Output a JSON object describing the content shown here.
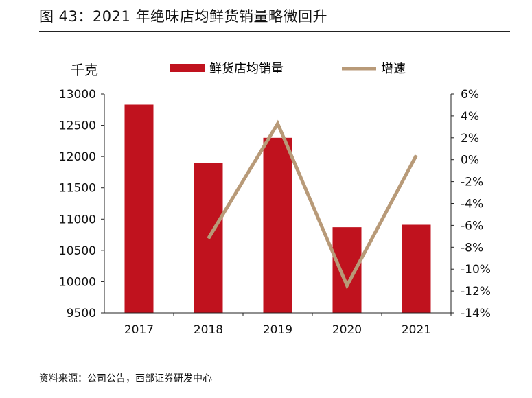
{
  "figure": {
    "title": "图 43：2021 年绝味店均鲜货销量略微回升",
    "source": "资料来源：公司公告，西部证券研发中心"
  },
  "colors": {
    "bar": "#c0121e",
    "line": "#b89a78",
    "axis": "#222222"
  },
  "chart_data": {
    "type": "bar",
    "categories": [
      "2017",
      "2018",
      "2019",
      "2020",
      "2021"
    ],
    "series": [
      {
        "name": "鲜货店均销量",
        "type": "bar",
        "axis": "left",
        "values": [
          12830,
          11900,
          12300,
          10870,
          10910
        ]
      },
      {
        "name": "增速",
        "type": "line",
        "axis": "right",
        "values": [
          null,
          -7.2,
          3.3,
          -11.5,
          0.4
        ]
      }
    ],
    "y_left": {
      "label": "千克",
      "min": 9500,
      "max": 13000,
      "ticks": [
        13000,
        12500,
        12000,
        11500,
        11000,
        10500,
        10000,
        9500
      ]
    },
    "y_right": {
      "min": -14,
      "max": 6,
      "ticks": [
        "6%",
        "4%",
        "2%",
        "0%",
        "-2%",
        "-4%",
        "-6%",
        "-8%",
        "-10%",
        "-12%",
        "-14%"
      ]
    },
    "legend": [
      "鲜货店均销量",
      "增速"
    ],
    "grid": false
  }
}
